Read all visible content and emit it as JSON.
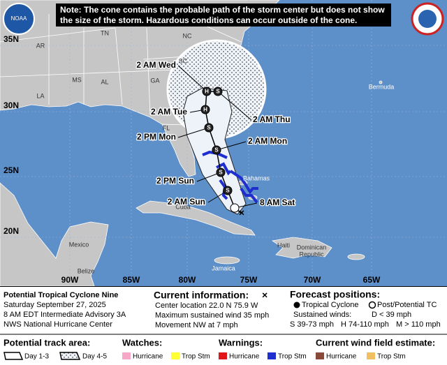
{
  "header": {
    "note": [
      "Note: The cone contains the probable path of the storm center but does not show",
      "the size of the storm. Hazardous conditions can occur outside of the cone."
    ],
    "logo": "NOAA"
  },
  "map": {
    "lat_labels": [
      "35N",
      "30N",
      "25N",
      "20N"
    ],
    "lon_labels": [
      "90W",
      "85W",
      "80W",
      "75W",
      "70W",
      "65W"
    ],
    "places": [
      "AR",
      "TN",
      "NC",
      "SC",
      "MS",
      "AL",
      "GA",
      "LA",
      "FL",
      "Bermuda",
      "Bahamas",
      "Cuba",
      "Mexico",
      "Belize",
      "Haiti",
      "Dominican",
      "Republic",
      "Jamaica"
    ],
    "current_marker": "×",
    "points": [
      {
        "time": "8 AM Sat",
        "symbol": "D"
      },
      {
        "time": "2 AM Sun",
        "symbol": "S"
      },
      {
        "time": "2 PM Sun",
        "symbol": "S"
      },
      {
        "time": "2 AM Mon",
        "symbol": "S"
      },
      {
        "time": "2 PM Mon",
        "symbol": "S"
      },
      {
        "time": "2 AM Tue",
        "symbol": "H"
      },
      {
        "time": "2 AM Wed",
        "symbol": "H"
      },
      {
        "time": "2 AM Thu",
        "symbol": "S"
      }
    ]
  },
  "info": {
    "storm": [
      "Potential Tropical Cyclone Nine",
      "Saturday September 27, 2025",
      "8 AM EDT Intermediate Advisory 3A",
      "NWS National Hurricane Center"
    ],
    "current": {
      "title": "Current information:",
      "marker": "×",
      "lines": [
        "Center location 22.0 N 75.9 W",
        "Maximum sustained wind 35 mph",
        "Movement NW at 7 mph"
      ]
    },
    "forecast": {
      "title": "Forecast positions:",
      "tropical": "Tropical Cyclone",
      "post": "Post/Potential TC",
      "winds": "Sustained winds:",
      "d": "D < 39 mph",
      "s": "S 39-73 mph",
      "h": "H 74-110 mph",
      "m": "M > 110 mph"
    }
  },
  "legend": {
    "track": {
      "title": "Potential track area:",
      "day13": "Day 1-3",
      "day45": "Day 4-5"
    },
    "watches": {
      "title": "Watches:",
      "hurricane": "Hurricane",
      "tropical_storm": "Trop Stm"
    },
    "warnings": {
      "title": "Warnings:",
      "hurricane": "Hurricane",
      "tropical_storm": "Trop Stm"
    },
    "wind_field": {
      "title": "Current wind field estimate:",
      "hurricane": "Hurricane",
      "tropical_storm": "Trop Stm"
    }
  }
}
